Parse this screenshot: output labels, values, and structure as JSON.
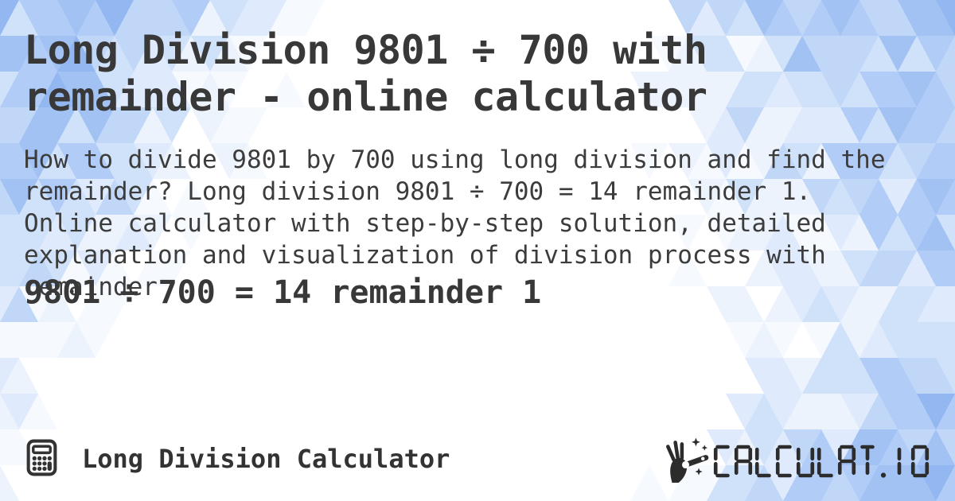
{
  "card": {
    "title_lines": [
      "Long Division 9801 ÷ 700 with",
      "remainder - online calculator"
    ],
    "description_lines": [
      "How to divide 9801 by 700 using long division and find the",
      "remainder? Long division 9801 ÷ 700 = 14 remainder 1.",
      "Online calculator with step-by-step solution, detailed",
      "explanation and visualization of division process with",
      "remainder"
    ],
    "result_line": "9801 ÷ 700 = 14 remainder 1"
  },
  "footer": {
    "site_name": "Long Division Calculator",
    "logo_text": "CALCULAT.IO"
  },
  "icons": {
    "calculator": "calculator-icon",
    "magic_wand": "magic-wand-icon"
  },
  "colors": {
    "text": "#383838",
    "logo": "#2c2c2c",
    "background_palette": [
      "#ffffff",
      "#f6faff",
      "#ecf3fd",
      "#dfeafc",
      "#d0e2fa",
      "#c1d7f8",
      "#b1ccf6",
      "#a2c2f4",
      "#93b8f1"
    ]
  }
}
